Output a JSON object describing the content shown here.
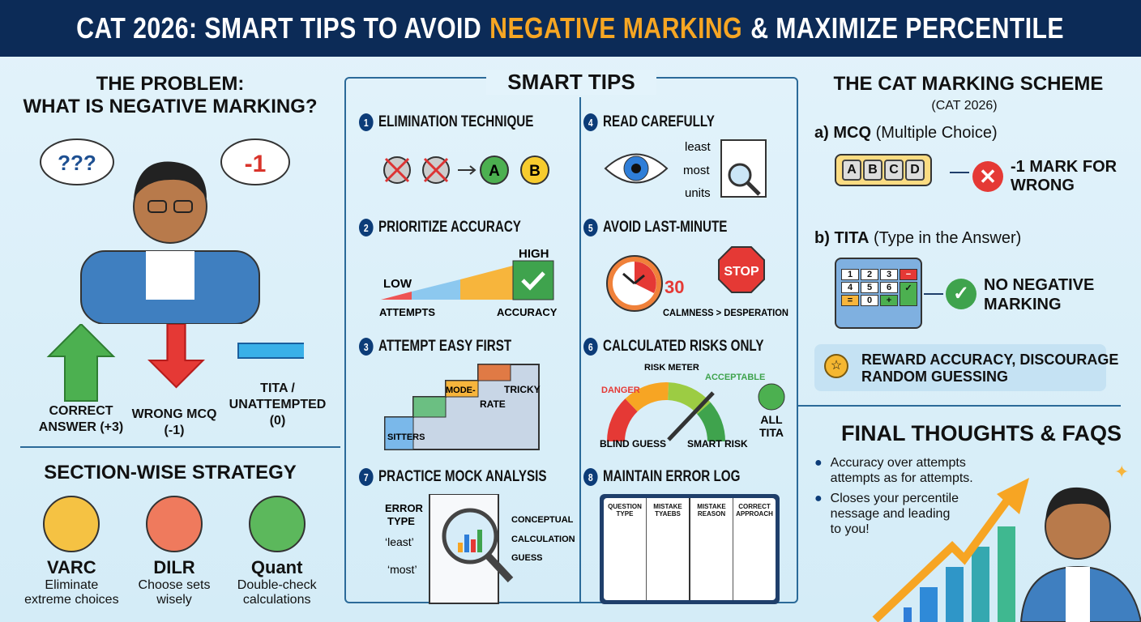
{
  "header": {
    "title_pre": "CAT 2026: SMART TIPS TO AVOID",
    "title_highlight": "NEGATIVE MARKING",
    "title_post": "& MAXIMIZE PERCENTILE",
    "highlight_color": "#f6a623",
    "bg_color": "#0c2b57"
  },
  "problem": {
    "title1": "THE PROBLEM:",
    "title2": "WHAT IS NEGATIVE MARKING?",
    "bubble1": "???",
    "bubble2": "-1",
    "outcomes": [
      {
        "label1": "CORRECT",
        "label2": "ANSWER (+3)",
        "icon": "arrow-up-icon"
      },
      {
        "label1": "WRONG MCQ",
        "label2": "(-1)",
        "icon": "arrow-down-icon"
      },
      {
        "label1": "TITA /",
        "label2": "UNATTEMPTED",
        "label3": "(0)",
        "icon": "minus-bar-icon"
      }
    ]
  },
  "sections": {
    "title": "SECTION-WISE STRATEGY",
    "items": [
      {
        "name": "VARC",
        "desc1": "Eliminate",
        "desc2": "extreme choices",
        "color": "#f5c243"
      },
      {
        "name": "DILR",
        "desc1": "Choose sets",
        "desc2": "wisely",
        "color": "#ef7a5d"
      },
      {
        "name": "Quant",
        "desc1": "Double-check",
        "desc2": "calculations",
        "color": "#5cb85c"
      }
    ]
  },
  "tips": {
    "title": "SMART TIPS",
    "items": [
      {
        "num": "1",
        "title": "ELIMINATION TECHNIQUE",
        "options": [
          "A",
          "B"
        ]
      },
      {
        "num": "2",
        "title": "PRIORITIZE ACCURACY",
        "low": "LOW",
        "high": "HIGH",
        "left": "ATTEMPTS",
        "right": "ACCURACY"
      },
      {
        "num": "3",
        "title": "ATTEMPT EASY FIRST",
        "steps": [
          "SITTERS",
          "MODE-",
          "RATE",
          "TRICKY"
        ]
      },
      {
        "num": "4",
        "title": "READ CAREFULLY",
        "words": [
          "least",
          "most",
          "units"
        ]
      },
      {
        "num": "5",
        "title": "AVOID LAST-MINUTE",
        "timer": "30",
        "stop": "STOP",
        "caption": "CALMNESS > DESPERATION"
      },
      {
        "num": "6",
        "title": "CALCULATED RISKS ONLY",
        "meter": "RISK METER",
        "danger": "DANGER",
        "acceptable": "ACCEPTABLE",
        "left": "BLIND GUESS",
        "right": "SMART RISK",
        "tita1": "ALL",
        "tita2": "TITA"
      },
      {
        "num": "7",
        "title": "PRACTICE MOCK ANALYSIS",
        "error1": "ERROR",
        "error2": "TYPE",
        "least": "‘least’",
        "most": "‘most’",
        "types": [
          "CONCEPTUAL",
          "CALCULATION",
          "GUESS"
        ]
      },
      {
        "num": "8",
        "title": "MAINTAIN ERROR LOG",
        "cols": [
          [
            "QUESTION",
            "TYPE"
          ],
          [
            "MISTAKE",
            "TYAEBS"
          ],
          [
            "MISTAKE",
            "REASON"
          ],
          [
            "CORRECT",
            "APPROACH"
          ]
        ]
      }
    ]
  },
  "scheme": {
    "title": "THE CAT MARKING SCHEME",
    "subtitle": "(CAT 2026)",
    "mcq": {
      "prefix": "a)",
      "name": "MCQ",
      "desc": "(Multiple Choice)",
      "keys": [
        "A",
        "B",
        "C",
        "D"
      ],
      "result1": "-1 MARK FOR",
      "result2": "WRONG"
    },
    "tita": {
      "prefix": "b)",
      "name": "TITA",
      "desc": "(Type in the Answer)",
      "keys": [
        "1",
        "2",
        "3",
        "−",
        "4",
        "5",
        "6",
        "=",
        "0",
        "+",
        "✓"
      ],
      "result1": "NO NEGATIVE",
      "result2": "MARKING"
    },
    "banner1": "REWARD ACCURACY, DISCOURAGE",
    "banner2": "RANDOM GUESSING"
  },
  "final": {
    "title": "FINAL THOUGHTS & FAQS",
    "bullets": [
      [
        "Accuracy over attempts",
        "attempts as for attempts."
      ],
      [
        "Closes your percentile",
        "nessage and leading",
        "to you!"
      ]
    ]
  }
}
